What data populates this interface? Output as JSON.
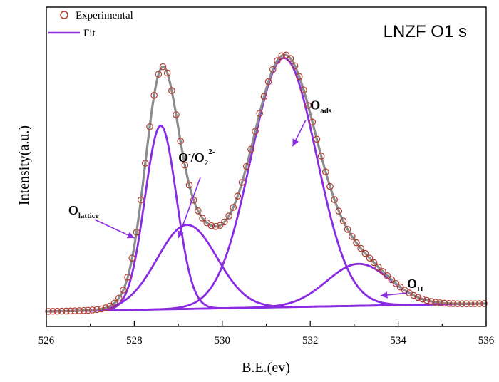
{
  "chart_data": {
    "type": "line",
    "title": "LNZF O1 s",
    "xlabel": "B.E.(ev)",
    "ylabel": "Intensity(a.u.)",
    "xlim": [
      526,
      536
    ],
    "ylim": [
      0,
      1
    ],
    "x_ticks": [
      "526",
      "528",
      "530",
      "532",
      "534",
      "536"
    ],
    "grid": false,
    "legend_position": "top-left",
    "legend": [
      {
        "label": "Experimental",
        "marker": "open-circle",
        "color": "#b03a2e"
      },
      {
        "label": "Fit",
        "marker": "line",
        "color": "#8a2be2"
      }
    ],
    "colors": {
      "experimental": "#b03a2e",
      "fit_envelope": "#8c8c8c",
      "components": "#8a2be2",
      "arrow": "#8a2be2"
    },
    "background": {
      "x1": 526,
      "y1": 0.03,
      "x2": 536,
      "y2": 0.06
    },
    "series": [
      {
        "name": "O lattice",
        "center": 528.6,
        "amplitude": 0.7,
        "fwhm": 0.85
      },
      {
        "name": "O-/O2 2-",
        "center": 529.2,
        "amplitude": 0.32,
        "fwhm": 1.6
      },
      {
        "name": "O ads",
        "center": 531.4,
        "amplitude": 0.95,
        "fwhm": 1.75
      },
      {
        "name": "O H",
        "center": 533.1,
        "amplitude": 0.16,
        "fwhm": 1.7
      }
    ],
    "annotations": [
      {
        "base": "O",
        "sub": "lattice",
        "sup": "",
        "text_at": [
          526.5,
          0.4
        ],
        "arrow_from": [
          527.1,
          0.38
        ],
        "arrow_to": [
          528.0,
          0.31
        ]
      },
      {
        "base": "O",
        "sub": "",
        "sup": "-",
        "base2": "/O",
        "sub2": "2",
        "sup2": "2-",
        "text_at": [
          529.0,
          0.6
        ],
        "arrow_from": [
          529.5,
          0.54
        ],
        "arrow_to": [
          529.0,
          0.31
        ]
      },
      {
        "base": "O",
        "sub": "ads",
        "sup": "",
        "text_at": [
          532.0,
          0.8
        ],
        "arrow_from": [
          531.9,
          0.76
        ],
        "arrow_to": [
          531.6,
          0.66
        ]
      },
      {
        "base": "O",
        "sub": "H",
        "sup": "",
        "text_at": [
          534.2,
          0.12
        ],
        "arrow_from": [
          534.2,
          0.1
        ],
        "arrow_to": [
          533.6,
          0.09
        ]
      }
    ]
  }
}
